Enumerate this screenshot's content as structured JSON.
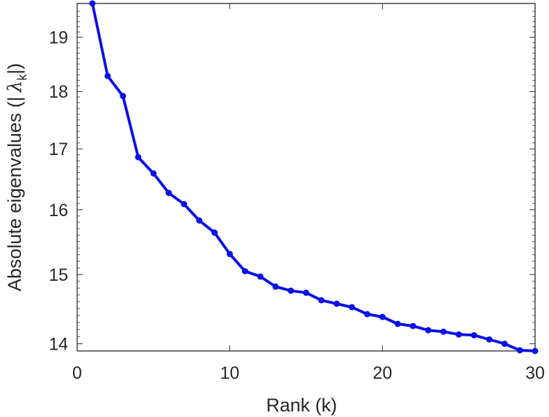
{
  "chart_data": {
    "type": "line",
    "xlabel": "Rank (k)",
    "ylabel": {
      "prefix": "Absolute eigenvalues (|",
      "symbol": "λ",
      "subscript": "k",
      "suffix": "|)"
    },
    "xlim": [
      0,
      30
    ],
    "ylim": [
      13.9,
      19.65
    ],
    "y_scale": "log",
    "grid": false,
    "legend": "none",
    "xticks": [
      0,
      10,
      20,
      30
    ],
    "yticks": [
      14,
      15,
      16,
      17,
      18,
      19
    ],
    "series": [
      {
        "color": "#0a10e6",
        "marker": "circle",
        "x": [
          1,
          2,
          3,
          4,
          5,
          6,
          7,
          8,
          9,
          10,
          11,
          12,
          13,
          14,
          15,
          16,
          17,
          18,
          19,
          20,
          21,
          22,
          23,
          24,
          25,
          26,
          27,
          28,
          29,
          30
        ],
        "y": [
          19.65,
          18.28,
          17.92,
          16.86,
          16.59,
          16.27,
          16.09,
          15.83,
          15.64,
          15.31,
          15.05,
          14.97,
          14.82,
          14.76,
          14.73,
          14.62,
          14.57,
          14.52,
          14.42,
          14.38,
          14.28,
          14.25,
          14.19,
          14.17,
          14.13,
          14.12,
          14.06,
          14.0,
          13.91,
          13.9
        ]
      }
    ]
  }
}
